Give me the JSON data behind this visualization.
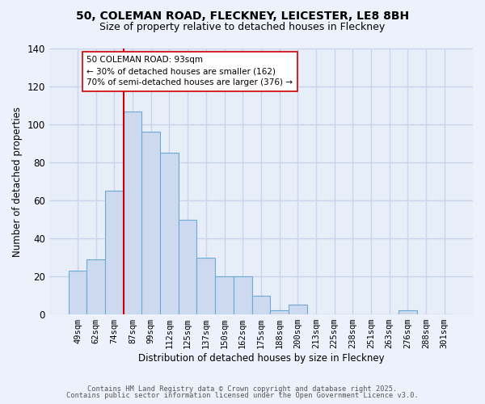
{
  "title_line1": "50, COLEMAN ROAD, FLECKNEY, LEICESTER, LE8 8BH",
  "title_line2": "Size of property relative to detached houses in Fleckney",
  "xlabel": "Distribution of detached houses by size in Fleckney",
  "ylabel": "Number of detached properties",
  "bar_labels": [
    "49sqm",
    "62sqm",
    "74sqm",
    "87sqm",
    "99sqm",
    "112sqm",
    "125sqm",
    "137sqm",
    "150sqm",
    "162sqm",
    "175sqm",
    "188sqm",
    "200sqm",
    "213sqm",
    "225sqm",
    "238sqm",
    "251sqm",
    "263sqm",
    "276sqm",
    "288sqm",
    "301sqm"
  ],
  "bar_values": [
    23,
    29,
    65,
    107,
    96,
    85,
    50,
    30,
    20,
    20,
    10,
    2,
    5,
    0,
    0,
    0,
    0,
    0,
    2,
    0,
    0
  ],
  "bar_color": "#ccd9ee",
  "bar_edge_color": "#6aaad4",
  "vline_x": 3.0,
  "vline_color": "#cc0000",
  "annotation_title": "50 COLEMAN ROAD: 93sqm",
  "annotation_line1": "← 30% of detached houses are smaller (162)",
  "annotation_line2": "70% of semi-detached houses are larger (376) →",
  "annotation_box_color": "#ffffff",
  "annotation_box_edge": "#cc0000",
  "ylim": [
    0,
    140
  ],
  "yticks": [
    0,
    20,
    40,
    60,
    80,
    100,
    120,
    140
  ],
  "footer_line1": "Contains HM Land Registry data © Crown copyright and database right 2025.",
  "footer_line2": "Contains public sector information licensed under the Open Government Licence v3.0.",
  "background_color": "#edf1fb",
  "grid_color": "#c8d4ef",
  "plot_bg_color": "#e8eef8"
}
